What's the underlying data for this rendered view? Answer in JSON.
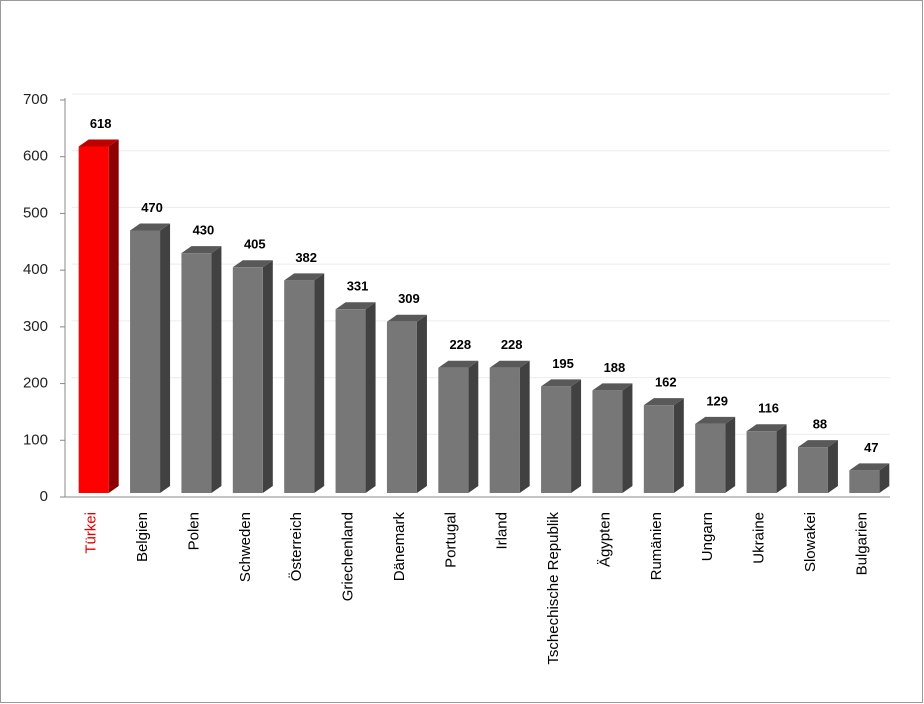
{
  "chart_data": {
    "type": "bar3d",
    "categories": [
      "Türkei",
      "Belgien",
      "Polen",
      "Schweden",
      "Österreich",
      "Griechenland",
      "Dänemark",
      "Portugal",
      "Irland",
      "Tschechische Republik",
      "Ägypten",
      "Rumänien",
      "Ungarn",
      "Ukraine",
      "Slowakei",
      "Bulgarien"
    ],
    "values": [
      618,
      470,
      430,
      405,
      382,
      331,
      309,
      228,
      228,
      195,
      188,
      162,
      129,
      116,
      88,
      47
    ],
    "colors": [
      "#ff0000",
      "#777777",
      "#777777",
      "#777777",
      "#777777",
      "#777777",
      "#777777",
      "#777777",
      "#777777",
      "#777777",
      "#777777",
      "#777777",
      "#777777",
      "#777777",
      "#777777",
      "#777777"
    ],
    "label_colors": [
      "#e00000",
      "#000000",
      "#000000",
      "#000000",
      "#000000",
      "#000000",
      "#000000",
      "#000000",
      "#000000",
      "#000000",
      "#000000",
      "#000000",
      "#000000",
      "#000000",
      "#000000",
      "#000000"
    ],
    "ylim": [
      0,
      700
    ],
    "yticks": [
      0,
      100,
      200,
      300,
      400,
      500,
      600,
      700
    ],
    "grid": true
  }
}
